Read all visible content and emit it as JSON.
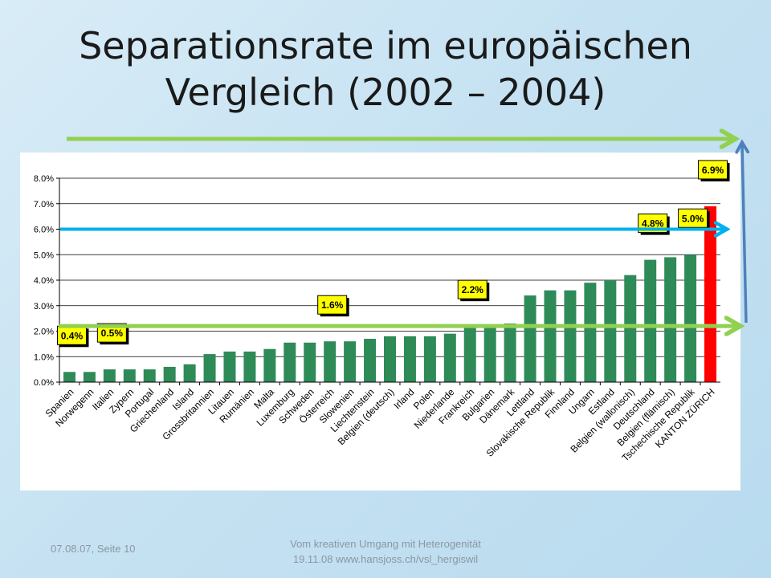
{
  "slide": {
    "title_line1": "Separationsrate im europäischen",
    "title_line2": "Vergleich  (2002 – 2004)"
  },
  "footer": {
    "date_page": "07.08.07, Seite 10",
    "event_line1": "Vom kreativen Umgang mit Heterogenität",
    "event_line2": "19.11.08  www.hansjoss.ch/vsl_hergiswil"
  },
  "colors": {
    "bar": "#2e8b57",
    "highlight_bar": "#ff0000",
    "callout_fill": "#ffff00",
    "arrow_green": "#92d050",
    "arrow_blue": "#00b0f0",
    "arrow_steel": "#4f81bd"
  },
  "chart_data": {
    "type": "bar",
    "title": "",
    "xlabel": "",
    "ylabel": "",
    "ylim": [
      0,
      0.08
    ],
    "yticks": [
      0,
      0.01,
      0.02,
      0.03,
      0.04,
      0.05,
      0.06,
      0.07,
      0.08
    ],
    "ytick_labels": [
      "0.0%",
      "1.0%",
      "2.0%",
      "3.0%",
      "4.0%",
      "5.0%",
      "6.0%",
      "7.0%",
      "8.0%"
    ],
    "grid": true,
    "legend": "none",
    "categories": [
      "Spanien",
      "Norwegenn",
      "Italien",
      "Zypern",
      "Portugal",
      "Griechenland",
      "Island",
      "Grossbritannien",
      "Litauen",
      "Rumänien",
      "Malta",
      "Luxemburg",
      "Schweden",
      "Österreich",
      "Slowenien",
      "Liechtenstein",
      "Belgien (deutsch)",
      "Irland",
      "Polen",
      "Niederlande",
      "Frankreich",
      "Bulgarien",
      "Dänemark",
      "Lettland",
      "Slovakische Republik",
      "Finnland",
      "Ungarn",
      "Estland",
      "Belgien (wallonisch)",
      "Deutschland",
      "Belgien (flämisch)",
      "Tschechische Republik",
      "KANTON ZÜRICH"
    ],
    "values": [
      0.004,
      0.004,
      0.005,
      0.005,
      0.005,
      0.006,
      0.007,
      0.011,
      0.012,
      0.012,
      0.013,
      0.0155,
      0.0155,
      0.016,
      0.016,
      0.017,
      0.018,
      0.018,
      0.018,
      0.019,
      0.022,
      0.022,
      0.023,
      0.034,
      0.036,
      0.036,
      0.039,
      0.04,
      0.042,
      0.048,
      0.049,
      0.05,
      0.069
    ],
    "highlight_index": 32,
    "callouts": [
      {
        "label": "0.4%",
        "index": 0
      },
      {
        "label": "0.5%",
        "index": 2
      },
      {
        "label": "1.6%",
        "index": 13
      },
      {
        "label": "2.2%",
        "index": 20
      },
      {
        "label": "4.8%",
        "index": 29
      },
      {
        "label": "5.0%",
        "index": 31
      },
      {
        "label": "6.9%",
        "index": 32
      }
    ],
    "reference_lines": [
      {
        "value": 0.022,
        "color_key": "arrow_green"
      },
      {
        "value": 0.06,
        "color_key": "arrow_blue"
      }
    ]
  }
}
